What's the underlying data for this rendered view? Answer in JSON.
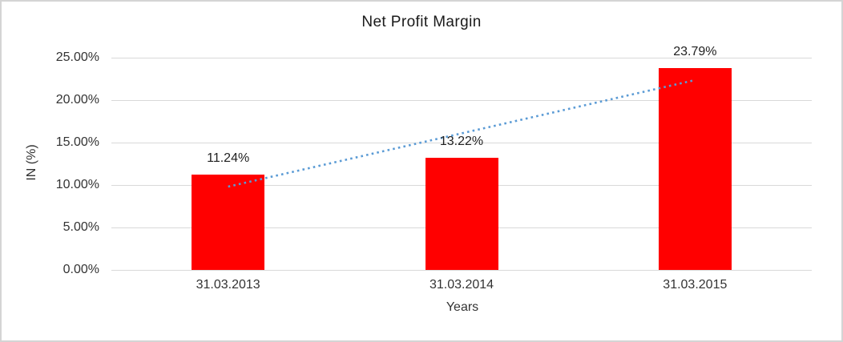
{
  "chart_data": {
    "type": "bar",
    "title": "Net Profit Margin",
    "xlabel": "Years",
    "ylabel": "IN (%)",
    "categories": [
      "31.03.2013",
      "31.03.2014",
      "31.03.2015"
    ],
    "values": [
      11.24,
      13.22,
      23.79
    ],
    "data_labels": [
      "11.24%",
      "13.22%",
      "23.79%"
    ],
    "ylim": [
      0,
      25
    ],
    "ytick_step": 5,
    "ytick_labels": [
      "0.00%",
      "5.00%",
      "10.00%",
      "15.00%",
      "20.00%",
      "25.00%"
    ],
    "grid": true,
    "legend": "none",
    "colors": {
      "bar": "#ff0000",
      "trendline": "#5b9bd5",
      "gridline": "#d9d9d9",
      "border": "#d4d4d4"
    },
    "trendline": {
      "style": "dotted",
      "type": "linear",
      "start_value_pct": 9.81,
      "end_value_pct": 22.36
    }
  }
}
